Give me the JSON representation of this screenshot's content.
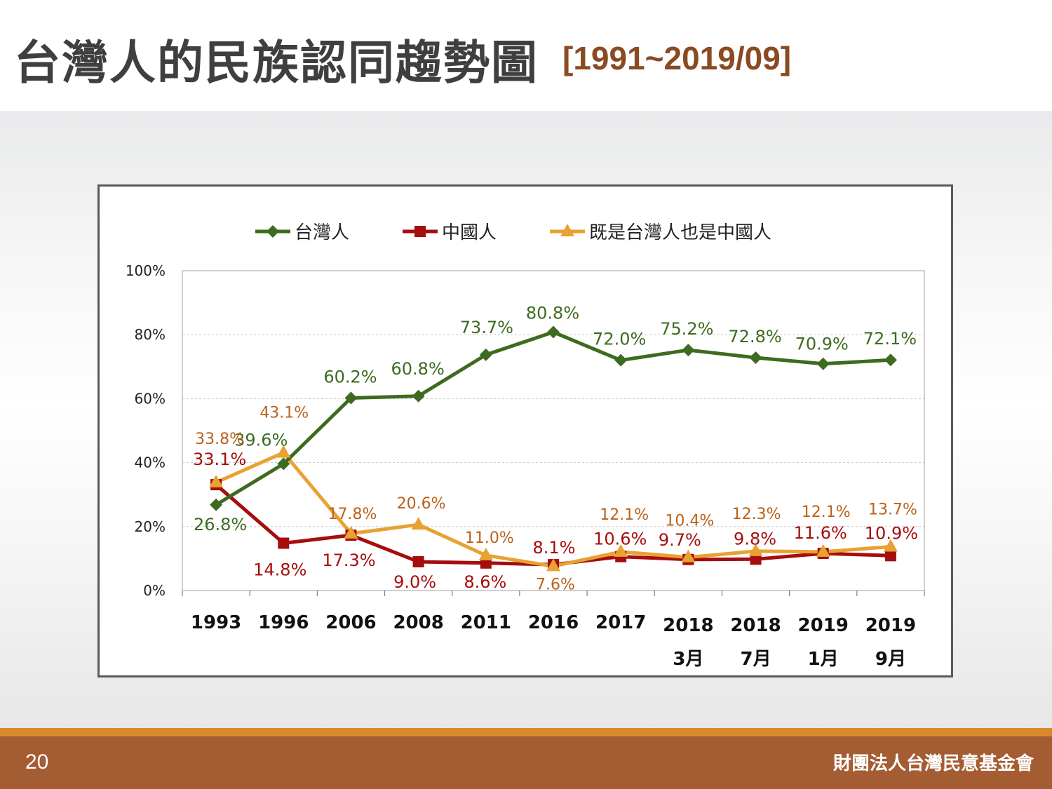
{
  "slide": {
    "title": "台灣人的民族認同趨勢圖",
    "subtitle": "[1991~2019/09]",
    "page_number": "20",
    "organization": "財團法人台灣民意基金會"
  },
  "colors": {
    "taiwanese": "#3d6b1f",
    "chinese": "#a60d0d",
    "both": "#e8a232",
    "both_label": "#b8621b"
  },
  "chart_data": {
    "type": "line",
    "categories": [
      [
        "1993"
      ],
      [
        "1996"
      ],
      [
        "2006"
      ],
      [
        "2008"
      ],
      [
        "2011"
      ],
      [
        "2016"
      ],
      [
        "2017"
      ],
      [
        "2018",
        "3月"
      ],
      [
        "2018",
        "7月"
      ],
      [
        "2019",
        "1月"
      ],
      [
        "2019",
        "9月"
      ]
    ],
    "ylim": [
      0,
      100
    ],
    "y_ticks": [
      "0%",
      "20%",
      "40%",
      "60%",
      "80%",
      "100%"
    ],
    "grid": true,
    "legend_position": "top",
    "series": [
      {
        "name": "台灣人",
        "marker": "diamond",
        "values": [
          26.8,
          39.6,
          60.2,
          60.8,
          73.7,
          80.8,
          72.0,
          75.2,
          72.8,
          70.9,
          72.1
        ],
        "labels": [
          "26.8%",
          "39.6%",
          "60.2%",
          "60.8%",
          "73.7%",
          "80.8%",
          "72.0%",
          "75.2%",
          "72.8%",
          "70.9%",
          "72.1%"
        ]
      },
      {
        "name": "中國人",
        "marker": "square",
        "values": [
          33.1,
          14.8,
          17.3,
          9.0,
          8.6,
          8.1,
          10.6,
          9.7,
          9.8,
          11.6,
          10.9
        ],
        "labels": [
          "33.1%",
          "14.8%",
          "17.3%",
          "9.0%",
          "8.6%",
          "8.1%",
          "10.6%",
          "9.7%",
          "9.8%",
          "11.6%",
          "10.9%"
        ]
      },
      {
        "name": "既是台灣人也是中國人",
        "marker": "triangle",
        "values": [
          33.8,
          43.1,
          17.8,
          20.6,
          11.0,
          7.6,
          12.1,
          10.4,
          12.3,
          12.1,
          13.7
        ],
        "labels": [
          "33.8%",
          "43.1%",
          "17.8%",
          "20.6%",
          "11.0%",
          "7.6%",
          "12.1%",
          "10.4%",
          "12.3%",
          "12.1%",
          "13.7%"
        ]
      }
    ]
  }
}
